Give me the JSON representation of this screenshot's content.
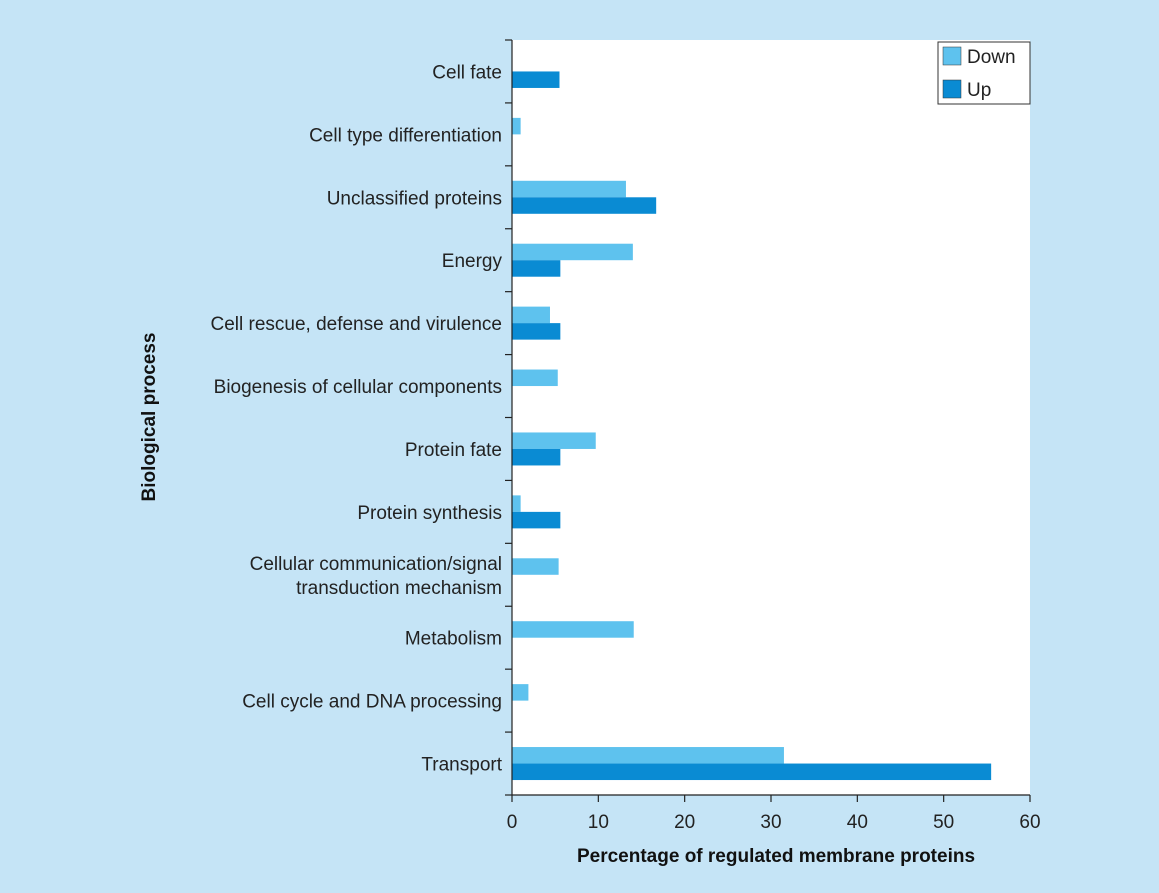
{
  "chart_data": {
    "type": "bar",
    "orientation": "horizontal",
    "title": "",
    "xlabel": "Percentage of regulated membrane proteins",
    "ylabel": "Biological process",
    "xlim": [
      0,
      60
    ],
    "xticks": [
      0,
      10,
      20,
      30,
      40,
      50,
      60
    ],
    "grid": false,
    "legend_position": "top-right",
    "categories": [
      [
        "Cell fate"
      ],
      [
        "Cell type differentiation"
      ],
      [
        "Unclassified proteins"
      ],
      [
        "Energy"
      ],
      [
        "Cell rescue, defense and virulence"
      ],
      [
        "Biogenesis of cellular components"
      ],
      [
        "Protein fate"
      ],
      [
        "Protein synthesis"
      ],
      [
        "Cellular communication/signal",
        "transduction mechanism"
      ],
      [
        "Metabolism"
      ],
      [
        "Cell cycle and DNA processing"
      ],
      [
        "Transport"
      ]
    ],
    "series": [
      {
        "name": "Down",
        "color": "#5ec2ee",
        "values": [
          0,
          1.0,
          13.2,
          14.0,
          4.4,
          5.3,
          9.7,
          1.0,
          5.4,
          14.1,
          1.9,
          31.5
        ]
      },
      {
        "name": "Up",
        "color": "#0a8bd3",
        "values": [
          5.5,
          0,
          16.7,
          5.6,
          5.6,
          0,
          5.6,
          5.6,
          0,
          0,
          0,
          55.5
        ]
      }
    ]
  }
}
